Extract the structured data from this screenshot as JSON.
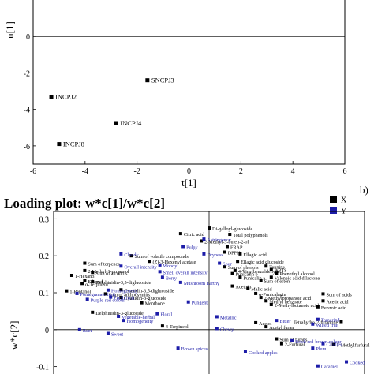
{
  "chart_data": [
    {
      "type": "scatter",
      "title": "",
      "xlabel": "t[1]",
      "ylabel": "u[1]",
      "xlim": [
        -6,
        6
      ],
      "ylim": [
        -7,
        2
      ],
      "xticks": [
        "-6",
        "-4",
        "-2",
        "0",
        "2",
        "4",
        "6"
      ],
      "yticks": [
        "0",
        "-2",
        "-4",
        "-6"
      ],
      "points": [
        {
          "label": "SNCPJ3",
          "x": -1.6,
          "y": -2.4
        },
        {
          "label": "INCPJ2",
          "x": -5.3,
          "y": -3.3
        },
        {
          "label": "INCPJ4",
          "x": -2.8,
          "y": -4.75
        },
        {
          "label": "INCPJ8",
          "x": -5.0,
          "y": -5.9
        }
      ]
    },
    {
      "type": "scatter",
      "title": "Loading plot: w*c[1]/w*c[2]",
      "panel_label": "b)",
      "xlabel": "",
      "ylabel": "w*c[2]",
      "xlim": [
        -0.3,
        0.3
      ],
      "ylim": [
        -0.12,
        0.32
      ],
      "yticks": [
        "0.3",
        "0.2",
        "0.1",
        "0",
        "-0.1"
      ],
      "legend": {
        "position": "top-right",
        "entries": [
          {
            "name": "X",
            "color": "#000000"
          },
          {
            "name": "Y",
            "color": "#1c1ca8"
          }
        ]
      },
      "series": [
        {
          "name": "X",
          "color": "#000000",
          "points": [
            {
              "label": "Di-galloyl-glucoside",
              "x": 0.0,
              "y": 0.275
            },
            {
              "label": "Citric acid",
              "x": -0.055,
              "y": 0.26
            },
            {
              "label": "Total polyphenols",
              "x": 0.04,
              "y": 0.258
            },
            {
              "label": "2-Methyl-3-buten-2-ol",
              "x": -0.015,
              "y": 0.24
            },
            {
              "label": "FRAP",
              "x": 0.035,
              "y": 0.225
            },
            {
              "label": "DPPH",
              "x": 0.03,
              "y": 0.21
            },
            {
              "label": "Sum of volatile compounds",
              "x": -0.15,
              "y": 0.2
            },
            {
              "label": "(Z)-3-Hexenyl acetate",
              "x": -0.115,
              "y": 0.185
            },
            {
              "label": "Ellagic acid",
              "x": 0.06,
              "y": 0.205
            },
            {
              "label": "Sum of terpenes",
              "x": -0.24,
              "y": 0.18
            },
            {
              "label": "Ellagic acid glucoside",
              "x": 0.055,
              "y": 0.185
            },
            {
              "label": "2-Methyl-1-propanol",
              "x": -0.24,
              "y": 0.16
            },
            {
              "label": "Sum of phenols",
              "x": 0.03,
              "y": 0.17
            },
            {
              "label": "Tannins",
              "x": 0.11,
              "y": 0.172
            },
            {
              "label": "Sum of alcohols",
              "x": -0.225,
              "y": 0.155
            },
            {
              "label": "4-Vinylbenzaldehyde",
              "x": 0.05,
              "y": 0.16
            },
            {
              "label": "ABTS",
              "x": 0.12,
              "y": 0.163
            },
            {
              "label": "1-Hexanol",
              "x": -0.265,
              "y": 0.147
            },
            {
              "label": "Punicalin b",
              "x": 0.045,
              "y": 0.152
            },
            {
              "label": "Phenethyl alcohol",
              "x": 0.13,
              "y": 0.153
            },
            {
              "label": "Ethanol",
              "x": -0.24,
              "y": 0.132
            },
            {
              "label": "Delphinidin-3,5-diglucoside",
              "x": -0.225,
              "y": 0.13
            },
            {
              "label": "Punicalin a",
              "x": 0.06,
              "y": 0.142
            },
            {
              "label": "Valeneic acid dilactone",
              "x": 0.12,
              "y": 0.142
            },
            {
              "label": "α-Terpineol",
              "x": -0.245,
              "y": 0.125
            },
            {
              "label": "Sum of esters",
              "x": 0.1,
              "y": 0.133
            },
            {
              "label": "Cyanidin-3,5-diglucoside",
              "x": -0.17,
              "y": 0.108
            },
            {
              "label": "Acetoin",
              "x": 0.045,
              "y": 0.118
            },
            {
              "label": "Malic acid",
              "x": 0.075,
              "y": 0.112
            },
            {
              "label": "1-Pentanol",
              "x": -0.275,
              "y": 0.105
            },
            {
              "label": "Sum of anthocyanins",
              "x": -0.2,
              "y": 0.097
            },
            {
              "label": "Cyanidin-3-glucoside",
              "x": -0.17,
              "y": 0.087
            },
            {
              "label": "α-Punicalagin",
              "x": 0.09,
              "y": 0.098
            },
            {
              "label": "Sum of acids",
              "x": 0.22,
              "y": 0.097
            },
            {
              "label": "2-Methylpropanoic acid",
              "x": 0.1,
              "y": 0.087
            },
            {
              "label": "Acetic acid",
              "x": 0.22,
              "y": 0.078
            },
            {
              "label": "Menthone",
              "x": -0.13,
              "y": 0.073
            },
            {
              "label": "Methyl benzoate",
              "x": 0.11,
              "y": 0.078
            },
            {
              "label": "Benzoic acid",
              "x": 0.21,
              "y": 0.062
            },
            {
              "label": "2-Methylbutanoic acid",
              "x": 0.12,
              "y": 0.068
            },
            {
              "label": "Delphinidin-3-glucoside",
              "x": -0.225,
              "y": 0.047
            },
            {
              "label": "4-Terpineol",
              "x": -0.09,
              "y": 0.01
            },
            {
              "label": "Acetol",
              "x": 0.09,
              "y": 0.019
            },
            {
              "label": "Acetyl furan",
              "x": 0.11,
              "y": 0.008
            },
            {
              "label": "Tetrahydro-2-furanone",
              "x": 0.255,
              "y": 0.022
            },
            {
              "label": "Sum of furans",
              "x": 0.13,
              "y": -0.025
            },
            {
              "label": "2-Furfural",
              "x": 0.14,
              "y": -0.038
            },
            {
              "label": "5-Methylfurfural",
              "x": 0.24,
              "y": -0.04
            }
          ]
        },
        {
          "name": "Y",
          "color": "#1c1ca8",
          "points": [
            {
              "label": "Astringency",
              "x": -0.01,
              "y": 0.245
            },
            {
              "label": "Cloudy",
              "x": -0.17,
              "y": 0.205
            },
            {
              "label": "Pulpy",
              "x": -0.05,
              "y": 0.225
            },
            {
              "label": "Dryness",
              "x": -0.01,
              "y": 0.205
            },
            {
              "label": "Overall intensity",
              "x": -0.17,
              "y": 0.172
            },
            {
              "label": "Woody",
              "x": -0.095,
              "y": 0.175
            },
            {
              "label": "Sour",
              "x": 0.02,
              "y": 0.18
            },
            {
              "label": "Smell overall intensity",
              "x": -0.095,
              "y": 0.157
            },
            {
              "label": "Berry",
              "x": -0.09,
              "y": 0.142
            },
            {
              "label": "Homogeneity",
              "x": -0.195,
              "y": 0.107
            },
            {
              "label": "Mushroom Earthy",
              "x": -0.055,
              "y": 0.128
            },
            {
              "label": "Pomegranate fruit",
              "x": -0.255,
              "y": 0.098
            },
            {
              "label": "Purple-red colour",
              "x": -0.235,
              "y": 0.082
            },
            {
              "label": "Fresh fruit",
              "x": -0.19,
              "y": 0.088
            },
            {
              "label": "Pungent",
              "x": -0.04,
              "y": 0.075
            },
            {
              "label": "Floral",
              "x": -0.1,
              "y": 0.043
            },
            {
              "label": "Vegetable-herbal",
              "x": -0.175,
              "y": 0.036
            },
            {
              "label": "Homogeneity",
              "x": -0.165,
              "y": 0.025
            },
            {
              "label": "Metallic",
              "x": 0.015,
              "y": 0.035
            },
            {
              "label": "Bitter",
              "x": 0.13,
              "y": 0.025
            },
            {
              "label": "Tamarind",
              "x": 0.21,
              "y": 0.028
            },
            {
              "label": "Wilted fruit",
              "x": 0.2,
              "y": 0.015
            },
            {
              "label": "Beet",
              "x": -0.25,
              "y": 0.0
            },
            {
              "label": "Chewy",
              "x": 0.015,
              "y": 0.003
            },
            {
              "label": "Sweet",
              "x": -0.195,
              "y": -0.01
            },
            {
              "label": "Brick red-brown colour",
              "x": 0.16,
              "y": -0.03
            },
            {
              "label": "Candies",
              "x": 0.22,
              "y": -0.038
            },
            {
              "label": "Brown spices",
              "x": -0.06,
              "y": -0.05
            },
            {
              "label": "Cooked apples",
              "x": 0.07,
              "y": -0.06
            },
            {
              "label": "Plum",
              "x": 0.2,
              "y": -0.05
            },
            {
              "label": "Caramel",
              "x": 0.21,
              "y": -0.098
            },
            {
              "label": "Cooked",
              "x": 0.265,
              "y": -0.087
            }
          ]
        }
      ]
    }
  ]
}
